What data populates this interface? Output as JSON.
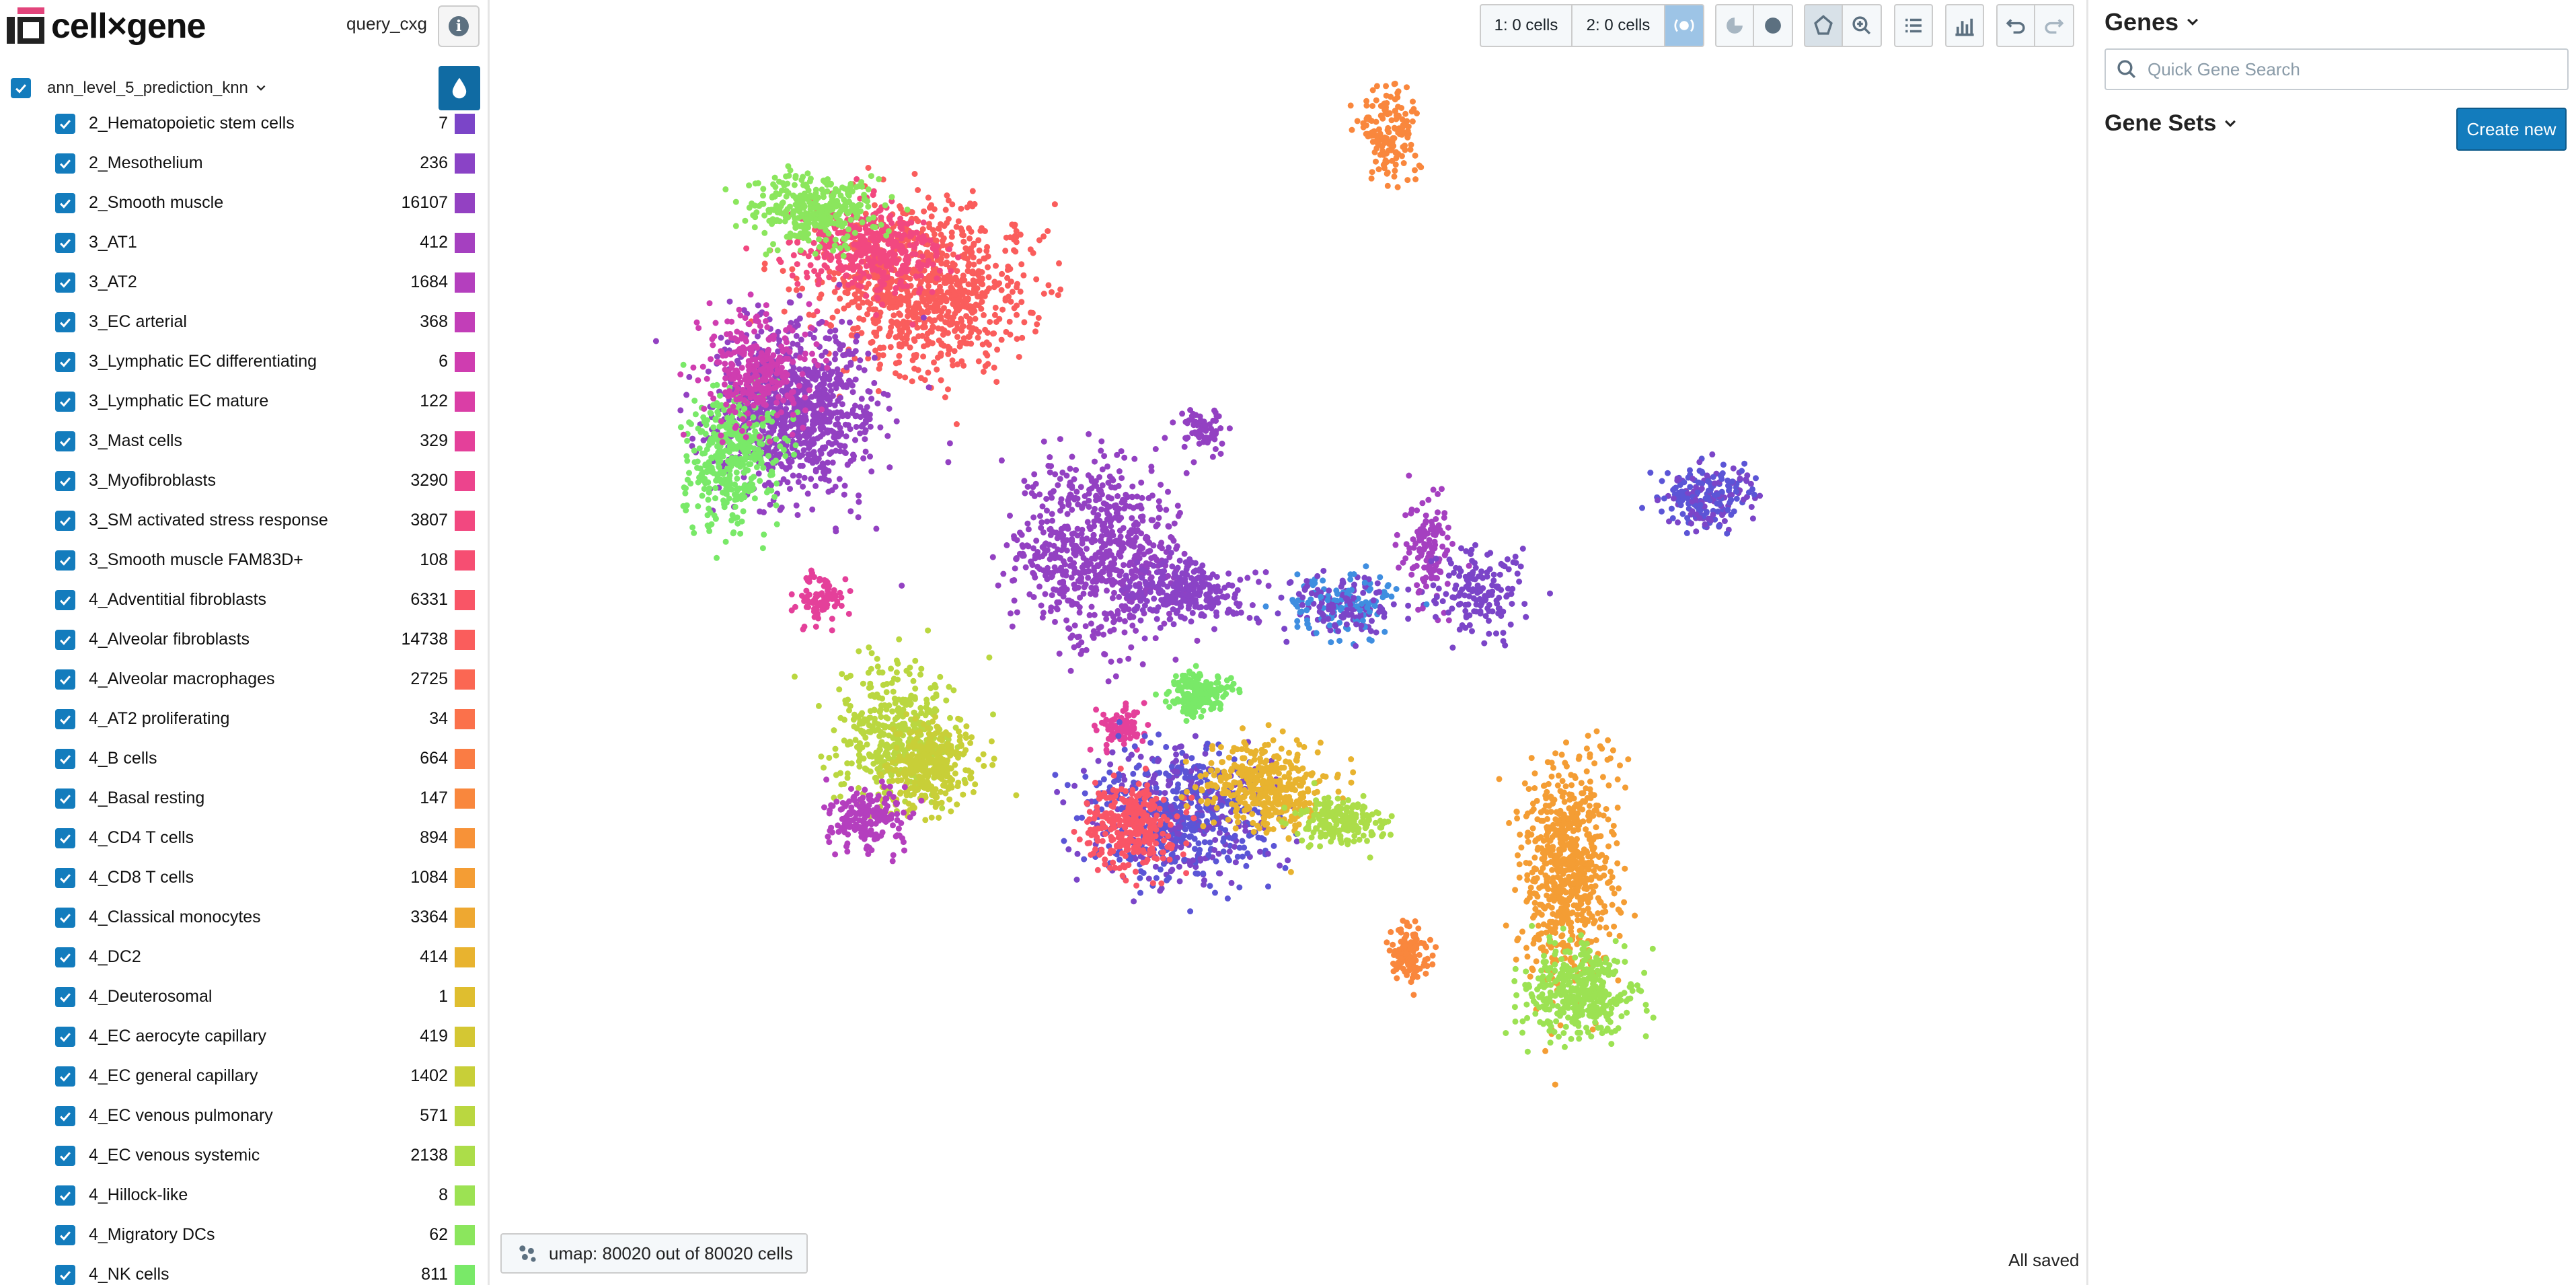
{
  "app": {
    "name": "cell×gene",
    "dataset": "query_cxg",
    "info_icon": "info-icon"
  },
  "category": {
    "title": "ann_level_5_prediction_knn",
    "color_icon": "droplet-icon",
    "expand_icon": "chevron-down-icon"
  },
  "labels": [
    {
      "label": "2_Hematopoietic stem cells",
      "count": "7",
      "color": "#7b45c8"
    },
    {
      "label": "2_Mesothelium",
      "count": "236",
      "color": "#8a43c6"
    },
    {
      "label": "2_Smooth muscle",
      "count": "16107",
      "color": "#9341c2"
    },
    {
      "label": "3_AT1",
      "count": "412",
      "color": "#a540c0"
    },
    {
      "label": "3_AT2",
      "count": "1684",
      "color": "#b43fbe"
    },
    {
      "label": "3_EC arterial",
      "count": "368",
      "color": "#c23eb8"
    },
    {
      "label": "3_Lymphatic EC differentiating",
      "count": "6",
      "color": "#cf3db0"
    },
    {
      "label": "3_Lymphatic EC mature",
      "count": "122",
      "color": "#da3ea6"
    },
    {
      "label": "3_Mast cells",
      "count": "329",
      "color": "#e4409a"
    },
    {
      "label": "3_Myofibroblasts",
      "count": "3290",
      "color": "#ec448d"
    },
    {
      "label": "3_SM activated stress response",
      "count": "3807",
      "color": "#f24880"
    },
    {
      "label": "3_Smooth muscle FAM83D+",
      "count": "108",
      "color": "#f64e72"
    },
    {
      "label": "4_Adventitial fibroblasts",
      "count": "6331",
      "color": "#f95566"
    },
    {
      "label": "4_Alveolar fibroblasts",
      "count": "14738",
      "color": "#fa5d5c"
    },
    {
      "label": "4_Alveolar macrophages",
      "count": "2725",
      "color": "#fb6753"
    },
    {
      "label": "4_AT2 proliferating",
      "count": "34",
      "color": "#fb714b"
    },
    {
      "label": "4_B cells",
      "count": "664",
      "color": "#fa7c44"
    },
    {
      "label": "4_Basal resting",
      "count": "147",
      "color": "#f9873d"
    },
    {
      "label": "4_CD4 T cells",
      "count": "894",
      "color": "#f79238"
    },
    {
      "label": "4_CD8 T cells",
      "count": "1084",
      "color": "#f49d34"
    },
    {
      "label": "4_Classical monocytes",
      "count": "3364",
      "color": "#eea831"
    },
    {
      "label": "4_DC2",
      "count": "414",
      "color": "#e8b32f"
    },
    {
      "label": "4_Deuterosomal",
      "count": "1",
      "color": "#dfbe2f"
    },
    {
      "label": "4_EC aerocyte capillary",
      "count": "419",
      "color": "#d4c733"
    },
    {
      "label": "4_EC general capillary",
      "count": "1402",
      "color": "#c8cf38"
    },
    {
      "label": "4_EC venous pulmonary",
      "count": "571",
      "color": "#bad740"
    },
    {
      "label": "4_EC venous systemic",
      "count": "2138",
      "color": "#acdd49"
    },
    {
      "label": "4_Hillock-like",
      "count": "8",
      "color": "#9ce253"
    },
    {
      "label": "4_Migratory DCs",
      "count": "62",
      "color": "#8be65d"
    },
    {
      "label": "4_NK cells",
      "count": "811",
      "color": "#79e968"
    }
  ],
  "toolbar": {
    "subset1": "1: 0 cells",
    "subset2": "2: 0 cells",
    "icons": [
      "visibility-icon",
      "pie-icon",
      "circle-icon",
      "lasso-icon",
      "zoom-icon",
      "list-icon",
      "bar-chart-icon",
      "undo-icon",
      "redo-icon"
    ]
  },
  "embedding": {
    "label": "umap: 80020 out of 80020 cells",
    "icon": "embedding-icon"
  },
  "status": {
    "saved": "All saved"
  },
  "right": {
    "genes_title": "Genes",
    "search_placeholder": "Quick Gene Search",
    "gene_sets_title": "Gene Sets",
    "create_label": "Create new"
  }
}
